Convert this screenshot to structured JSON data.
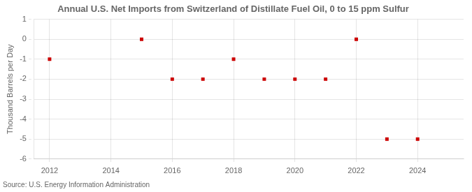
{
  "chart_data": {
    "type": "scatter",
    "title": "Annual U.S. Net Imports from Switzerland of Distillate Fuel Oil, 0 to 15 ppm Sulfur",
    "ylabel": "Thousand Barrels per Day",
    "annotation": "Source: U.S. Energy Information Administration",
    "x": [
      2012,
      2015,
      2016,
      2017,
      2018,
      2019,
      2020,
      2021,
      2022,
      2023,
      2024
    ],
    "values": [
      -1,
      0,
      -2,
      -2,
      -1,
      -2,
      -2,
      -2,
      0,
      -5,
      -5
    ],
    "color": "#cc0000",
    "marker": "square",
    "xlim": [
      2011.5,
      2025.5
    ],
    "xticks": [
      2012,
      2014,
      2016,
      2018,
      2020,
      2022,
      2024
    ],
    "ylim": [
      -6,
      1
    ],
    "yticks": [
      -6,
      -5,
      -4,
      -3,
      -2,
      -1,
      0,
      1
    ],
    "grid": true
  }
}
